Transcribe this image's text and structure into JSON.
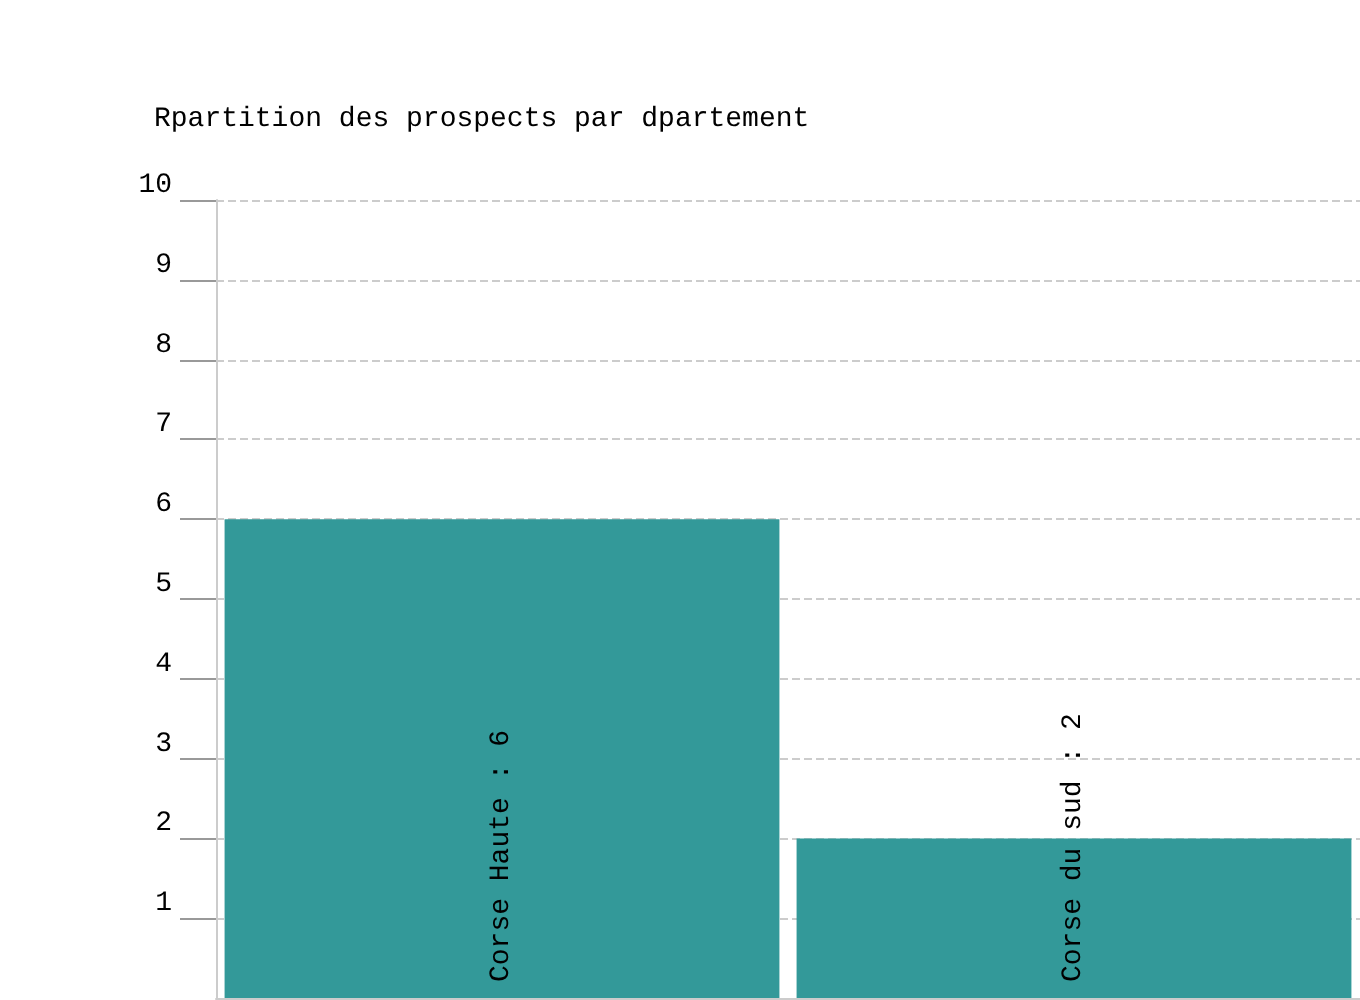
{
  "chart_data": {
    "type": "bar",
    "title": "Rpartition des prospects par dpartement",
    "categories": [
      null,
      null
    ],
    "values": [
      6,
      2
    ],
    "value_labels": [
      "Corse Haute : 6",
      "Corse du sud : 2"
    ],
    "color": "#339999",
    "ylim": [
      0,
      10
    ],
    "yticks": [
      1,
      2,
      3,
      4,
      5,
      6,
      7,
      8,
      9,
      10
    ],
    "grid": "y",
    "tick_labels": "y"
  }
}
